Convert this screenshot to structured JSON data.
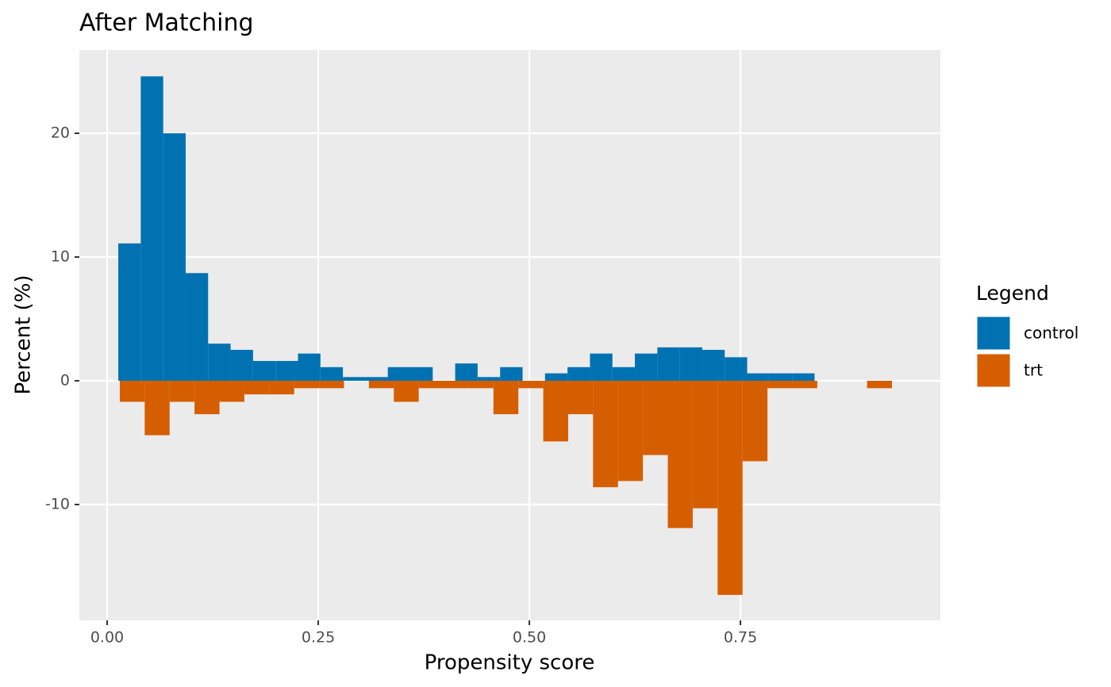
{
  "chart_data": {
    "type": "histogram",
    "title": "After Matching",
    "x_label": "Propensity score",
    "y_label": "Percent (%)",
    "legend_title": "Legend",
    "legend_position": "right",
    "xlim": [
      -0.0329,
      0.9868
    ],
    "ylim": [
      -19.36,
      26.73
    ],
    "xticks": [
      {
        "value": 0,
        "label": "0.00"
      },
      {
        "value": 0.25,
        "label": "0.25"
      },
      {
        "value": 0.5,
        "label": "0.50"
      },
      {
        "value": 0.75,
        "label": "0.75"
      }
    ],
    "yticks": [
      -10,
      0,
      10,
      20
    ],
    "grid": true,
    "series": [
      {
        "name": "control",
        "color": "#0072B2",
        "bins": [
          0.0132,
          0.0398,
          0.0664,
          0.093,
          0.1196,
          0.1462,
          0.1728,
          0.1994,
          0.226,
          0.2526,
          0.2792,
          0.3058,
          0.3324,
          0.359,
          0.3856,
          0.4122,
          0.4388,
          0.4654,
          0.492,
          0.5186,
          0.5452,
          0.5718,
          0.5984,
          0.625,
          0.6516,
          0.6782,
          0.7048,
          0.7314,
          0.758,
          0.7846,
          0.8112,
          0.8378
        ],
        "values": [
          11.1,
          24.6,
          20.0,
          8.7,
          3.0,
          2.5,
          1.6,
          1.6,
          2.2,
          1.1,
          0.3,
          0.3,
          1.1,
          1.1,
          0,
          1.4,
          0.3,
          1.1,
          0,
          0.6,
          1.1,
          2.2,
          1.1,
          2.2,
          2.7,
          2.7,
          2.5,
          1.9,
          0.6,
          0.6,
          0.6
        ]
      },
      {
        "name": "trt",
        "color": "#D55E00",
        "bins": [
          0.015,
          0.0445,
          0.074,
          0.1035,
          0.133,
          0.1625,
          0.192,
          0.2215,
          0.251,
          0.2805,
          0.31,
          0.3395,
          0.369,
          0.3985,
          0.428,
          0.4575,
          0.487,
          0.5165,
          0.546,
          0.5755,
          0.605,
          0.6345,
          0.664,
          0.6935,
          0.723,
          0.7525,
          0.782,
          0.8115,
          0.841,
          0.8705,
          0.9,
          0.9295
        ],
        "values": [
          -1.7,
          -4.4,
          -1.7,
          -2.7,
          -1.7,
          -1.1,
          -1.1,
          -0.6,
          -0.6,
          0,
          -0.6,
          -1.7,
          -0.6,
          -0.6,
          -0.6,
          -2.7,
          -0.6,
          -4.9,
          -2.7,
          -8.6,
          -8.1,
          -6.0,
          -11.9,
          -10.3,
          -17.3,
          -6.5,
          -0.6,
          -0.6,
          0,
          0,
          -0.6
        ]
      }
    ]
  }
}
